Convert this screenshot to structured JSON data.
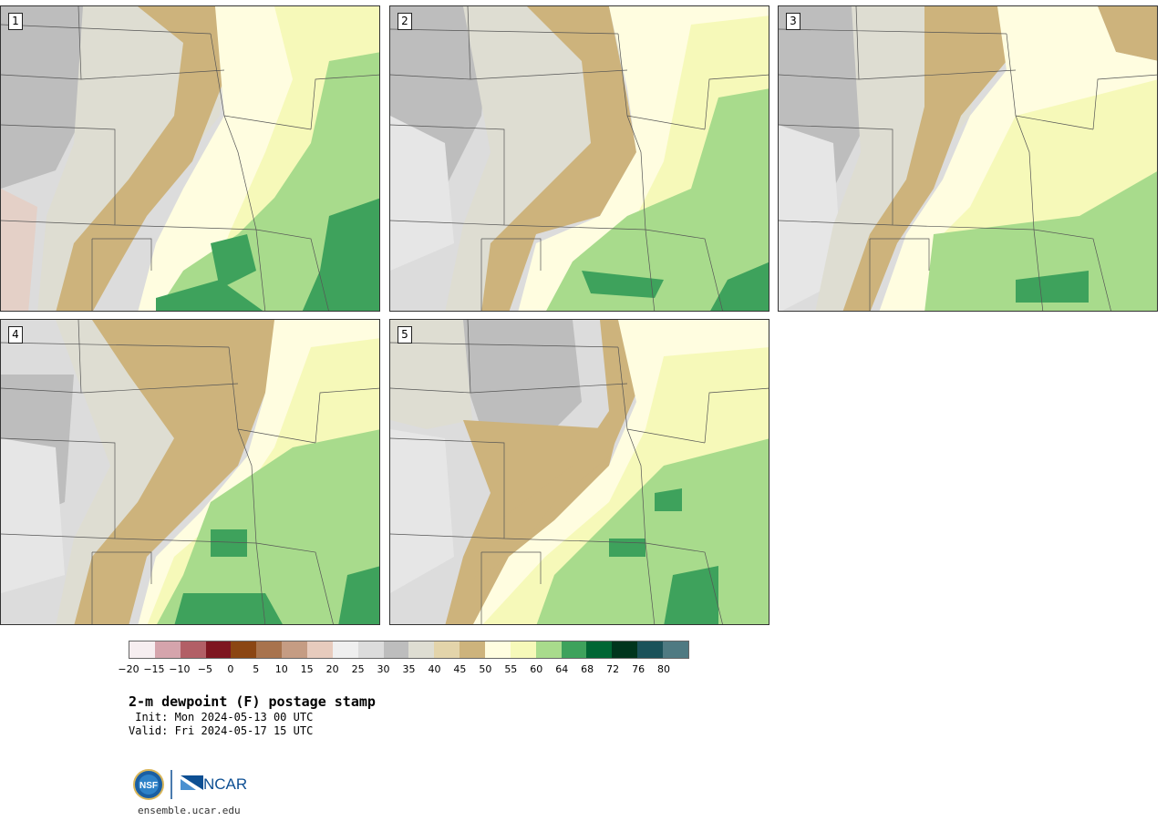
{
  "panels": [
    {
      "number": "1"
    },
    {
      "number": "2"
    },
    {
      "number": "3"
    },
    {
      "number": "4"
    },
    {
      "number": "5"
    }
  ],
  "legend": {
    "colors": [
      "#f6eef0",
      "#d5a4ac",
      "#b25f66",
      "#7e1620",
      "#8b4613",
      "#a8734d",
      "#c59c83",
      "#e7cbbd",
      "#efefef",
      "#dcdcdc",
      "#bdbdbd",
      "#deddd2",
      "#e3d4aa",
      "#cdb37c",
      "#fffde0",
      "#f6f9b9",
      "#a8db8c",
      "#3ea25c",
      "#006634",
      "#00351d",
      "#1b525a",
      "#4f7a82"
    ],
    "ticks": [
      "−20",
      "−15",
      "−10",
      "−5",
      "0",
      "5",
      "10",
      "15",
      "20",
      "25",
      "30",
      "35",
      "40",
      "45",
      "50",
      "55",
      "60",
      "64",
      "68",
      "72",
      "76",
      "80"
    ]
  },
  "title": "2-m dewpoint (F) postage stamp",
  "init": " Init: Mon 2024-05-13 00 UTC",
  "valid": "Valid: Fri 2024-05-17 15 UTC",
  "logos": {
    "left": "NSF",
    "right": "NCAR"
  },
  "url": "ensemble.ucar.edu"
}
